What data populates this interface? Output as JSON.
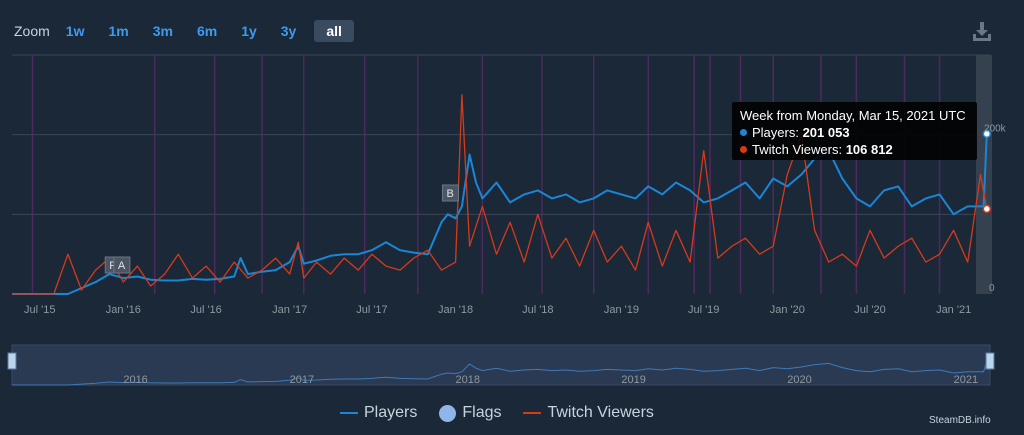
{
  "zoom": {
    "label": "Zoom",
    "buttons": [
      "1w",
      "1m",
      "3m",
      "6m",
      "1y",
      "3y",
      "all"
    ],
    "active": "all"
  },
  "tooltip": {
    "header": "Week from Monday, Mar 15, 2021 UTC",
    "players_label": "Players: ",
    "players_value": "201 053",
    "twitch_label": "Twitch Viewers: ",
    "twitch_value": "106 812"
  },
  "legend": {
    "players": "Players",
    "flags": "Flags",
    "twitch": "Twitch Viewers"
  },
  "credit": "SteamDB.info",
  "colors": {
    "background": "#1b2838",
    "players": "#1a86d6",
    "twitch": "#d63a1a",
    "flag_line": "#5a2a6a",
    "grid": "#3a4658",
    "axis_text": "#8f98a0"
  },
  "chart_data": {
    "type": "line",
    "title": "",
    "x_axis": {
      "type": "date",
      "tick_labels": [
        "Jul '15",
        "Jan '16",
        "Jul '16",
        "Jan '17",
        "Jul '17",
        "Jan '18",
        "Jul '18",
        "Jan '19",
        "Jul '19",
        "Jan '20",
        "Jul '20",
        "Jan '21"
      ],
      "range": [
        "2015-05-01",
        "2021-03-22"
      ]
    },
    "y_axis": {
      "tick_labels": [
        "0",
        "200k"
      ],
      "range": [
        0,
        300000
      ]
    },
    "grid": true,
    "legend_position": "bottom-center",
    "navigator_labels": [
      "2016",
      "2017",
      "2018",
      "2019",
      "2020",
      "2021"
    ],
    "flags": [
      {
        "label": "Re",
        "date": "2015-12-01"
      },
      {
        "label": "A",
        "date": "2015-12-20"
      },
      {
        "label": "B",
        "date": "2017-12-12"
      }
    ],
    "series": [
      {
        "name": "Players",
        "x": [
          "2015-05-01",
          "2015-09-01",
          "2015-11-01",
          "2015-12-01",
          "2016-01-01",
          "2016-02-01",
          "2016-03-01",
          "2016-04-01",
          "2016-05-01",
          "2016-06-01",
          "2016-07-01",
          "2016-08-01",
          "2016-09-01",
          "2016-09-15",
          "2016-10-01",
          "2016-11-01",
          "2016-12-01",
          "2017-01-01",
          "2017-01-20",
          "2017-02-01",
          "2017-03-01",
          "2017-04-01",
          "2017-05-01",
          "2017-06-01",
          "2017-07-01",
          "2017-08-01",
          "2017-09-01",
          "2017-10-01",
          "2017-11-01",
          "2017-12-01",
          "2017-12-15",
          "2018-01-01",
          "2018-01-15",
          "2018-02-01",
          "2018-02-15",
          "2018-03-01",
          "2018-04-01",
          "2018-05-01",
          "2018-06-01",
          "2018-07-01",
          "2018-08-01",
          "2018-09-01",
          "2018-10-01",
          "2018-11-01",
          "2018-12-01",
          "2019-01-01",
          "2019-02-01",
          "2019-03-01",
          "2019-04-01",
          "2019-05-01",
          "2019-06-01",
          "2019-07-01",
          "2019-08-01",
          "2019-09-01",
          "2019-10-01",
          "2019-11-01",
          "2019-12-01",
          "2020-01-01",
          "2020-02-01",
          "2020-03-01",
          "2020-04-01",
          "2020-05-01",
          "2020-06-01",
          "2020-07-01",
          "2020-08-01",
          "2020-09-01",
          "2020-10-01",
          "2020-11-01",
          "2020-12-01",
          "2021-01-01",
          "2021-02-01",
          "2021-03-08",
          "2021-03-15"
        ],
        "y": [
          0,
          0,
          15000,
          25000,
          20000,
          22000,
          18000,
          17000,
          17000,
          19000,
          18000,
          19000,
          22000,
          45000,
          25000,
          28000,
          30000,
          40000,
          60000,
          38000,
          42000,
          48000,
          50000,
          50000,
          55000,
          65000,
          55000,
          52000,
          50000,
          90000,
          100000,
          95000,
          110000,
          175000,
          140000,
          120000,
          140000,
          115000,
          125000,
          130000,
          120000,
          125000,
          115000,
          120000,
          130000,
          125000,
          120000,
          135000,
          125000,
          140000,
          130000,
          115000,
          120000,
          130000,
          140000,
          120000,
          145000,
          135000,
          150000,
          170000,
          180000,
          145000,
          120000,
          110000,
          130000,
          135000,
          110000,
          120000,
          125000,
          100000,
          110000,
          110000,
          201053
        ]
      },
      {
        "name": "Twitch Viewers",
        "x": [
          "2015-05-01",
          "2015-08-01",
          "2015-09-01",
          "2015-10-01",
          "2015-11-01",
          "2015-12-01",
          "2016-01-01",
          "2016-02-01",
          "2016-03-01",
          "2016-04-01",
          "2016-05-01",
          "2016-06-01",
          "2016-07-01",
          "2016-08-01",
          "2016-09-01",
          "2016-10-01",
          "2016-11-01",
          "2016-12-01",
          "2017-01-01",
          "2017-01-20",
          "2017-02-01",
          "2017-03-01",
          "2017-04-01",
          "2017-05-01",
          "2017-06-01",
          "2017-07-01",
          "2017-08-01",
          "2017-09-01",
          "2017-10-01",
          "2017-11-01",
          "2017-12-01",
          "2018-01-01",
          "2018-01-15",
          "2018-02-01",
          "2018-03-01",
          "2018-04-01",
          "2018-05-01",
          "2018-06-01",
          "2018-07-01",
          "2018-08-01",
          "2018-09-01",
          "2018-10-01",
          "2018-11-01",
          "2018-12-01",
          "2019-01-01",
          "2019-02-01",
          "2019-03-01",
          "2019-04-01",
          "2019-05-01",
          "2019-06-01",
          "2019-07-01",
          "2019-08-01",
          "2019-09-01",
          "2019-10-01",
          "2019-11-01",
          "2019-12-01",
          "2020-01-01",
          "2020-02-01",
          "2020-03-01",
          "2020-04-01",
          "2020-05-01",
          "2020-06-01",
          "2020-07-01",
          "2020-08-01",
          "2020-09-01",
          "2020-10-01",
          "2020-11-01",
          "2020-12-01",
          "2021-01-01",
          "2021-02-01",
          "2021-03-01",
          "2021-03-15"
        ],
        "y": [
          0,
          0,
          50000,
          5000,
          30000,
          45000,
          15000,
          35000,
          10000,
          25000,
          50000,
          20000,
          35000,
          15000,
          40000,
          20000,
          30000,
          45000,
          25000,
          65000,
          20000,
          40000,
          25000,
          45000,
          30000,
          50000,
          35000,
          30000,
          45000,
          55000,
          30000,
          40000,
          250000,
          60000,
          110000,
          50000,
          90000,
          40000,
          100000,
          45000,
          70000,
          35000,
          80000,
          40000,
          60000,
          30000,
          90000,
          35000,
          80000,
          40000,
          180000,
          45000,
          60000,
          70000,
          50000,
          60000,
          150000,
          200000,
          80000,
          40000,
          50000,
          35000,
          80000,
          45000,
          60000,
          70000,
          40000,
          50000,
          80000,
          40000,
          150000,
          106812
        ]
      }
    ]
  }
}
